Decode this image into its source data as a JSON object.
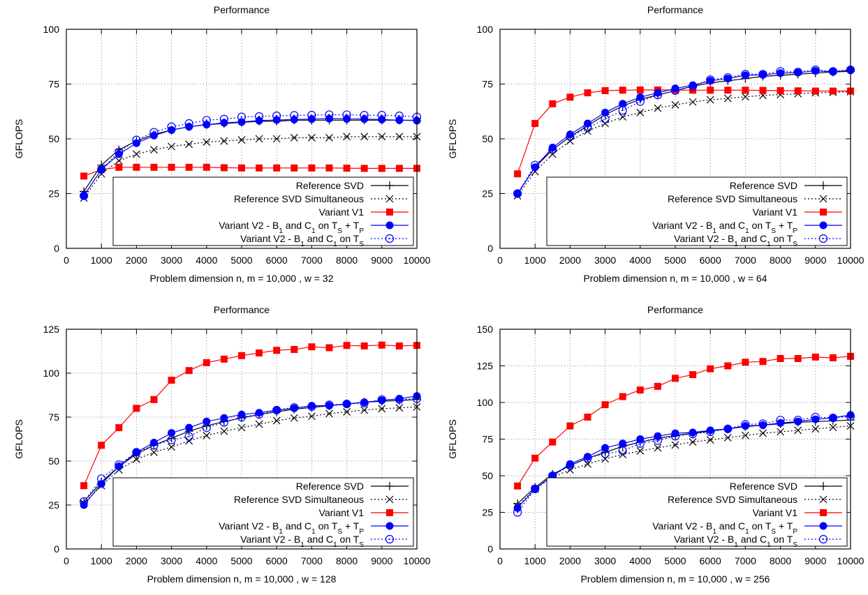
{
  "series_styles": [
    {
      "color": "#000000",
      "dash": "",
      "marker": "plus"
    },
    {
      "color": "#000000",
      "dash": "2,3",
      "marker": "cross"
    },
    {
      "color": "#ff0000",
      "dash": "",
      "marker": "square"
    },
    {
      "color": "#0000ff",
      "dash": "",
      "marker": "circle-filled"
    },
    {
      "color": "#0000ff",
      "dash": "2,3",
      "marker": "circle-open"
    }
  ],
  "chart_data": [
    {
      "type": "line",
      "title": "Performance",
      "xlabel": "Problem dimension n, m = 10,000 , w = 32",
      "ylabel": "GFLOPS",
      "xlim": [
        0,
        10000
      ],
      "ylim": [
        0,
        100
      ],
      "xticks": [
        0,
        1000,
        2000,
        3000,
        4000,
        5000,
        6000,
        7000,
        8000,
        9000,
        10000
      ],
      "yticks": [
        0,
        25,
        50,
        75,
        100
      ],
      "grid": true,
      "legend_position": "bottom-right",
      "x": [
        500,
        1000,
        1500,
        2000,
        2500,
        3000,
        3500,
        4000,
        4500,
        5000,
        5500,
        6000,
        6500,
        7000,
        7500,
        8000,
        8500,
        9000,
        9500,
        10000
      ],
      "series": [
        {
          "legend": [
            "Reference SVD"
          ],
          "values": [
            26,
            38,
            45,
            49,
            52,
            54,
            55.5,
            56.5,
            57,
            57.5,
            58,
            58,
            58.5,
            58.5,
            58.5,
            58.5,
            58.5,
            58.5,
            58.5,
            58.5
          ]
        },
        {
          "legend": [
            "Reference SVD Simultaneous"
          ],
          "values": [
            23,
            34,
            40,
            43,
            45,
            46.5,
            47.5,
            48.5,
            49,
            49.5,
            50,
            50,
            50.5,
            50.5,
            50.5,
            51,
            51,
            51,
            51,
            51
          ]
        },
        {
          "legend": [
            "Variant V1"
          ],
          "values": [
            33,
            36,
            37,
            37,
            37,
            37,
            37,
            37,
            36.8,
            36.7,
            36.7,
            36.7,
            36.7,
            36.7,
            36.7,
            36.6,
            36.5,
            36.5,
            36.5,
            36.5
          ]
        },
        {
          "legend": [
            "Variant V2 - B",
            "1",
            " and C",
            "1",
            " on T",
            "S",
            " + T",
            "P"
          ],
          "values": [
            24,
            36,
            43,
            48,
            51.5,
            54,
            55.5,
            56.5,
            57.3,
            57.7,
            58.3,
            58.6,
            58.8,
            59,
            59.2,
            59.1,
            59,
            58.8,
            58.5,
            58.3
          ]
        },
        {
          "legend": [
            "Variant V2 - B",
            "1",
            " and C",
            "1",
            " on T",
            "S"
          ],
          "values": [
            24,
            36,
            44,
            49.5,
            53,
            55.5,
            57,
            58.5,
            59,
            60,
            60.2,
            60.5,
            60.7,
            60.8,
            61,
            61,
            60.8,
            60.8,
            60.5,
            60
          ]
        }
      ]
    },
    {
      "type": "line",
      "title": "Performance",
      "xlabel": "Problem dimension n, m = 10,000 , w = 64",
      "ylabel": "GFLOPS",
      "xlim": [
        0,
        10000
      ],
      "ylim": [
        0,
        100
      ],
      "xticks": [
        0,
        1000,
        2000,
        3000,
        4000,
        5000,
        6000,
        7000,
        8000,
        9000,
        10000
      ],
      "yticks": [
        0,
        25,
        50,
        75,
        100
      ],
      "grid": true,
      "legend_position": "bottom-right",
      "x": [
        500,
        1000,
        1500,
        2000,
        2500,
        3000,
        3500,
        4000,
        4500,
        5000,
        5500,
        6000,
        6500,
        7000,
        7500,
        8000,
        8500,
        9000,
        9500,
        10000
      ],
      "series": [
        {
          "legend": [
            "Reference SVD"
          ],
          "values": [
            25,
            37,
            45,
            51,
            56,
            61,
            65,
            68,
            70,
            72,
            74,
            75.5,
            76.5,
            77.5,
            78.5,
            79,
            79.5,
            80,
            80.5,
            80.8
          ]
        },
        {
          "legend": [
            "Reference SVD Simultaneous"
          ],
          "values": [
            24,
            35,
            43,
            49,
            53.5,
            57,
            60,
            62,
            64,
            65.5,
            66.8,
            67.8,
            68.5,
            69.2,
            69.8,
            70.2,
            70.6,
            71,
            71.2,
            71.5
          ]
        },
        {
          "legend": [
            "Variant V1"
          ],
          "values": [
            34,
            57,
            66,
            69,
            71,
            72,
            72.2,
            72.3,
            72.3,
            72.3,
            72.2,
            72.2,
            72.2,
            72.2,
            72.1,
            72,
            71.9,
            71.8,
            71.8,
            71.8
          ]
        },
        {
          "legend": [
            "Variant V2 - B",
            "1",
            " and C",
            "1",
            " on T",
            "S",
            " + T",
            "P"
          ],
          "values": [
            25,
            37,
            46,
            52,
            57,
            62,
            66,
            69,
            71,
            73,
            74.5,
            76.5,
            77.5,
            79,
            79.2,
            80,
            80.2,
            81,
            80.6,
            81.3
          ]
        },
        {
          "legend": [
            "Variant V2 - B",
            "1",
            " and C",
            "1",
            " on T",
            "S"
          ],
          "values": [
            25,
            38,
            45,
            51,
            55,
            59,
            63,
            67,
            70,
            72,
            74,
            77,
            78,
            79.5,
            79.5,
            80.8,
            80.5,
            81.5,
            80.8,
            81.5
          ]
        }
      ]
    },
    {
      "type": "line",
      "title": "Performance",
      "xlabel": "Problem dimension n, m = 10,000 , w = 128",
      "ylabel": "GFLOPS",
      "xlim": [
        0,
        10000
      ],
      "ylim": [
        0,
        125
      ],
      "xticks": [
        0,
        1000,
        2000,
        3000,
        4000,
        5000,
        6000,
        7000,
        8000,
        9000,
        10000
      ],
      "yticks": [
        0,
        25,
        50,
        75,
        100,
        125
      ],
      "grid": true,
      "legend_position": "bottom-right",
      "x": [
        500,
        1000,
        1500,
        2000,
        2500,
        3000,
        3500,
        4000,
        4500,
        5000,
        5500,
        6000,
        6500,
        7000,
        7500,
        8000,
        8500,
        9000,
        9500,
        10000
      ],
      "series": [
        {
          "legend": [
            "Reference SVD"
          ],
          "values": [
            27,
            38,
            47,
            54,
            59,
            63,
            67,
            70,
            72.5,
            74.5,
            76.5,
            78,
            79.5,
            80.5,
            81.5,
            82.5,
            83.5,
            84,
            84.5,
            85
          ]
        },
        {
          "legend": [
            "Reference SVD Simultaneous"
          ],
          "values": [
            26,
            36,
            45,
            51,
            55,
            58,
            61.5,
            64.5,
            67,
            69,
            71,
            73,
            74.5,
            75.5,
            77,
            78,
            79,
            79.8,
            80.3,
            80.8
          ]
        },
        {
          "legend": [
            "Variant V1"
          ],
          "values": [
            36,
            59,
            69,
            80,
            85,
            96,
            101.5,
            106,
            108,
            110,
            111.5,
            113,
            113.5,
            115,
            114.5,
            115.8,
            115.5,
            116,
            115.5,
            115.8
          ]
        },
        {
          "legend": [
            "Variant V2 - B",
            "1",
            " and C",
            "1",
            " on T",
            "S",
            " + T",
            "P"
          ],
          "values": [
            25,
            37,
            47,
            55,
            60.5,
            66,
            69,
            72.5,
            74.5,
            76.5,
            77.5,
            79,
            80,
            81.5,
            81.5,
            82.5,
            83.5,
            84.5,
            85.5,
            87
          ]
        },
        {
          "legend": [
            "Variant V2 - B",
            "1",
            " and C",
            "1",
            " on T",
            "S"
          ],
          "values": [
            27,
            40,
            48,
            55,
            59,
            62,
            64,
            69,
            72,
            75,
            76.5,
            79,
            80.5,
            81,
            82,
            82.5,
            83,
            85,
            85,
            85.5
          ]
        }
      ]
    },
    {
      "type": "line",
      "title": "Performance",
      "xlabel": "Problem dimension n, m = 10,000 , w = 256",
      "ylabel": "GFLOPS",
      "xlim": [
        0,
        10000
      ],
      "ylim": [
        0,
        150
      ],
      "xticks": [
        0,
        1000,
        2000,
        3000,
        4000,
        5000,
        6000,
        7000,
        8000,
        9000,
        10000
      ],
      "yticks": [
        0,
        25,
        50,
        75,
        100,
        125,
        150
      ],
      "grid": true,
      "legend_position": "bottom-right",
      "x": [
        500,
        1000,
        1500,
        2000,
        2500,
        3000,
        3500,
        4000,
        4500,
        5000,
        5500,
        6000,
        6500,
        7000,
        7500,
        8000,
        8500,
        9000,
        9500,
        10000
      ],
      "series": [
        {
          "legend": [
            "Reference SVD"
          ],
          "values": [
            31,
            42,
            51,
            57,
            62,
            66,
            70,
            73,
            75.5,
            77.5,
            79,
            80.5,
            82,
            83.5,
            84.5,
            85.5,
            86.5,
            87,
            87.5,
            88
          ]
        },
        {
          "legend": [
            "Reference SVD Simultaneous"
          ],
          "values": [
            29,
            41,
            49,
            54,
            58,
            61.5,
            64.5,
            67,
            69,
            71,
            73,
            74.5,
            76,
            77.5,
            79,
            80,
            81,
            82,
            83,
            84
          ]
        },
        {
          "legend": [
            "Variant V1"
          ],
          "values": [
            43,
            62,
            73,
            84,
            90,
            98.5,
            104,
            108.5,
            111,
            116.5,
            119,
            123,
            125,
            127.5,
            128,
            130,
            130,
            131,
            130.5,
            131.5
          ]
        },
        {
          "legend": [
            "Variant V2 - B",
            "1",
            " and C",
            "1",
            " on T",
            "S",
            " + T",
            "P"
          ],
          "values": [
            28,
            41,
            50,
            58,
            63,
            69,
            72,
            75,
            77,
            79,
            79.5,
            81,
            82,
            84,
            84.5,
            86,
            87,
            88.5,
            89.5,
            91.5
          ]
        },
        {
          "legend": [
            "Variant V2 - B",
            "1",
            " and C",
            "1",
            " on T",
            "S"
          ],
          "values": [
            25,
            41,
            50,
            57,
            62,
            65,
            67,
            72,
            74,
            77,
            78.5,
            80,
            82,
            85,
            85.5,
            88,
            88,
            90,
            89.5,
            90.5
          ]
        }
      ]
    }
  ]
}
